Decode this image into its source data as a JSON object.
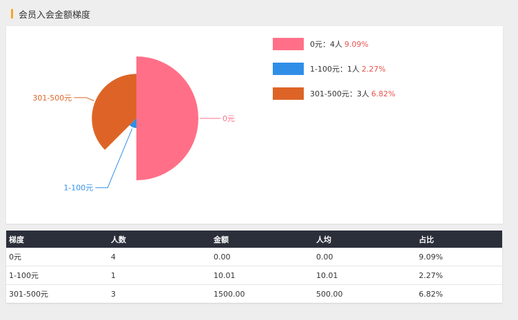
{
  "page": {
    "title": "会员入会金额梯度"
  },
  "colors": {
    "accent": "#f5a623",
    "header_bg": "#2b2f3a",
    "pct_text": "#e8524f"
  },
  "chart_data": {
    "type": "pie",
    "subtype": "rose",
    "title": "",
    "slices": [
      {
        "label": "0元",
        "count": 4,
        "unit": "人",
        "percent": "9.09%",
        "value": 4,
        "color": "#ff7088"
      },
      {
        "label": "1-100元",
        "count": 1,
        "unit": "人",
        "percent": "2.27%",
        "value": 1,
        "color": "#2f8fe8"
      },
      {
        "label": "301-500元",
        "count": 3,
        "unit": "人",
        "percent": "6.82%",
        "value": 3,
        "color": "#dd6426"
      }
    ],
    "legend_position": "top-right"
  },
  "legend": [
    {
      "label": "0元",
      "sep": "：",
      "count_text": "4人",
      "pct": "9.09%"
    },
    {
      "label": "1-100元",
      "sep": "：",
      "count_text": "1人",
      "pct": "2.27%"
    },
    {
      "label": "301-500元",
      "sep": "：",
      "count_text": "3人",
      "pct": "6.82%"
    }
  ],
  "table": {
    "headers": [
      "梯度",
      "人数",
      "金额",
      "人均",
      "占比"
    ],
    "rows": [
      [
        "0元",
        "4",
        "0.00",
        "0.00",
        "9.09%"
      ],
      [
        "1-100元",
        "1",
        "10.01",
        "10.01",
        "2.27%"
      ],
      [
        "301-500元",
        "3",
        "1500.00",
        "500.00",
        "6.82%"
      ]
    ]
  }
}
